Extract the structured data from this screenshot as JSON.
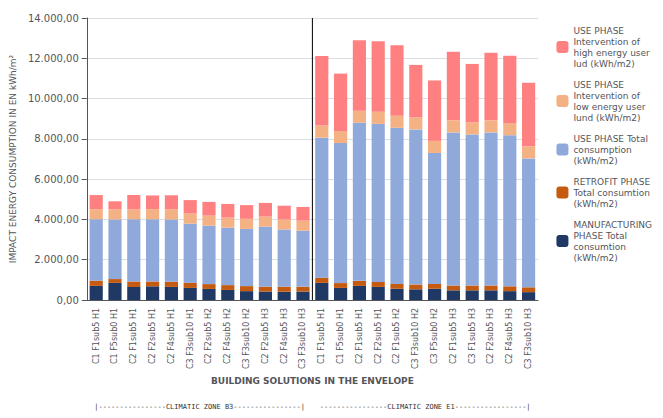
{
  "chart_data": {
    "type": "bar",
    "stacked": true,
    "categories": [
      "C1 F1sub5 H1",
      "C1 F5sub0 H1",
      "C2 F1sub5 H1",
      "C2 F2sub5 H1",
      "C2 F4sub5 H1",
      "C3 F3sub10 H1",
      "C2 F2sub5 H2",
      "C2 F4sub5 H2",
      "C3 F3sub10 H2",
      "C2 F2sub5 H3",
      "C2 F4sub5 H3",
      "C3 F3sub10 H3",
      "C1 F1sub5 H1",
      "C1 F5sub0 H1",
      "C2 F1sub5 H1",
      "C2 F2sub5 H1",
      "C2 F1sub5 H2",
      "C3 F3sub10 H2",
      "C3 F5sub0 H2",
      "C2 F1sub5 H3",
      "C3 F1sub5 H3",
      "C2 F2sub5 H3",
      "C2 F4sub5 H3",
      "C3 F3sub10 H3"
    ],
    "series": [
      {
        "name": "MANUFACTURING\nPHASE Total\nconsumtion\n(kWh/m2)",
        "color": "#1F3864",
        "values": [
          700,
          850,
          650,
          680,
          650,
          600,
          550,
          500,
          440,
          420,
          410,
          420,
          850,
          600,
          700,
          650,
          560,
          530,
          560,
          480,
          480,
          480,
          440,
          390
        ]
      },
      {
        "name": "RETROFIT PHASE\nTotal consumtion\n(kWh/m2)",
        "color": "#C55A11",
        "values": [
          260,
          190,
          270,
          240,
          260,
          250,
          240,
          240,
          250,
          240,
          250,
          240,
          260,
          240,
          250,
          245,
          240,
          240,
          240,
          240,
          240,
          240,
          240,
          240
        ]
      },
      {
        "name": "USE PHASE Total\nconsumption\n(kWh/m2)",
        "color": "#8FA9DB",
        "values": [
          3050,
          2960,
          3090,
          3090,
          3090,
          2940,
          2900,
          2850,
          2840,
          2980,
          2840,
          2780,
          6950,
          6950,
          7850,
          7850,
          7750,
          7700,
          6500,
          7600,
          7500,
          7600,
          7500,
          6400
        ]
      },
      {
        "name": "USE PHASE\nIntervention of\nlow energy user\nIund (kWh/m2)",
        "color": "#F4B183",
        "values": [
          500,
          500,
          500,
          500,
          500,
          500,
          500,
          500,
          500,
          500,
          500,
          500,
          600,
          600,
          600,
          600,
          600,
          600,
          600,
          600,
          600,
          600,
          600,
          600
        ]
      },
      {
        "name": "USE PHASE\nIntervention of\nhigh energy user\nIud (kWh/m2)",
        "color": "#FF8080",
        "values": [
          700,
          400,
          700,
          680,
          700,
          670,
          680,
          680,
          680,
          680,
          680,
          680,
          3450,
          2850,
          3500,
          3500,
          3500,
          2600,
          3000,
          3400,
          2900,
          3350,
          3350,
          3150
        ]
      }
    ],
    "xlabel": "BUILDING SOLUTIONS IN THE ENVELOPE",
    "ylabel": "IMPACT ENERGY CONSUMPTION IN EN kWh/m²",
    "ylim": [
      0,
      14000
    ],
    "yticks": [
      {
        "value": 0,
        "label": "0,00"
      },
      {
        "value": 2000,
        "label": "2.000,00"
      },
      {
        "value": 4000,
        "label": "4.000,00"
      },
      {
        "value": 6000,
        "label": "6.000,00"
      },
      {
        "value": 8000,
        "label": "8.000,00"
      },
      {
        "value": 10000,
        "label": "10.000,00"
      },
      {
        "value": 12000,
        "label": "12.000,00"
      },
      {
        "value": 14000,
        "label": "14.000,00"
      }
    ],
    "grid": true,
    "legend": "right",
    "annotations": [
      "|----------------CLIMATIC ZONE B3----------------|",
      "----------------CLIMATIC ZONE E1-----------------|"
    ]
  }
}
